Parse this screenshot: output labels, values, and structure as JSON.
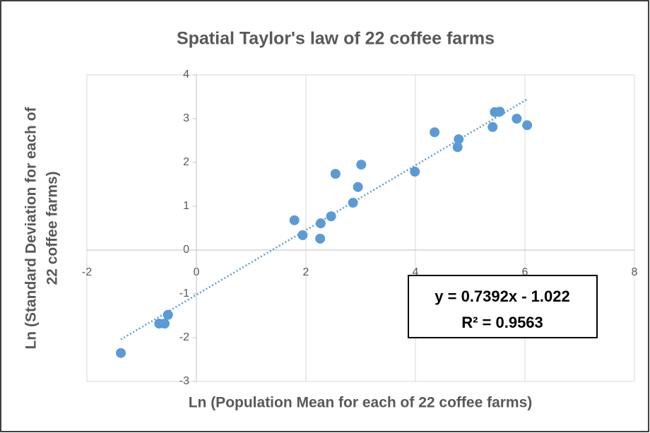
{
  "chart_data": {
    "type": "scatter",
    "title": "Spatial Taylor's law of 22 coffee farms",
    "xlabel": "Ln (Population Mean for each of 22 coffee farms)",
    "ylabel": [
      "Ln (Standard Deviation for each of",
      "22 coffee farms)"
    ],
    "x": [
      -1.38,
      -0.68,
      -0.58,
      -0.52,
      1.79,
      1.94,
      2.27,
      2.26,
      2.46,
      2.54,
      2.86,
      2.95,
      3.01,
      3.99,
      4.35,
      4.77,
      4.79,
      5.41,
      5.45,
      5.54,
      5.85,
      6.04
    ],
    "values": [
      -2.35,
      -1.68,
      -1.68,
      -1.48,
      0.68,
      0.34,
      0.61,
      0.26,
      0.77,
      1.74,
      1.08,
      1.44,
      1.95,
      1.79,
      2.69,
      2.35,
      2.53,
      2.81,
      3.15,
      3.16,
      3.0,
      2.85
    ],
    "color": "#5b9bd5",
    "xlim": [
      -2,
      8
    ],
    "xticks": [
      -2,
      0,
      2,
      4,
      6,
      8
    ],
    "ylim": [
      -3,
      4
    ],
    "yticks": [
      -3,
      -2,
      -1,
      0,
      1,
      2,
      3,
      4
    ],
    "grid": "x",
    "trendline": {
      "slope": 0.7392,
      "intercept": -1.022,
      "equation": "y = 0.7392x - 1.022",
      "r_squared": "R² = 0.9563"
    }
  }
}
